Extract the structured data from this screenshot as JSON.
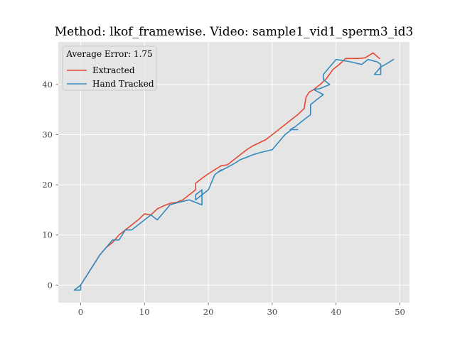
{
  "chart_data": {
    "type": "line",
    "title": "Method: lkof_framewise. Video: sample1_vid1_sperm3_id3",
    "xlabel": "",
    "ylabel": "",
    "xlim": [
      -3.5,
      51.5
    ],
    "ylim": [
      -3.5,
      48.5
    ],
    "x_ticks": [
      0,
      10,
      20,
      30,
      40,
      50
    ],
    "y_ticks": [
      0,
      10,
      20,
      30,
      40
    ],
    "grid": true,
    "legend_placement": "top-left",
    "legend_title": "Average Error: 1.75",
    "series": [
      {
        "name": "Extracted",
        "color": "#E24A33",
        "points": [
          [
            0,
            0
          ],
          [
            1,
            2
          ],
          [
            2,
            4
          ],
          [
            3,
            6
          ],
          [
            4,
            7.5
          ],
          [
            5,
            8.5
          ],
          [
            6,
            10
          ],
          [
            7,
            11
          ],
          [
            8,
            12
          ],
          [
            9,
            13
          ],
          [
            10,
            14.2
          ],
          [
            11,
            14
          ],
          [
            12,
            15.2
          ],
          [
            13,
            15.8
          ],
          [
            14,
            16.3
          ],
          [
            15,
            16.5
          ],
          [
            16,
            17
          ],
          [
            17,
            18
          ],
          [
            18,
            19
          ],
          [
            18,
            20.3
          ],
          [
            19,
            21.3
          ],
          [
            20,
            22.2
          ],
          [
            21,
            23
          ],
          [
            22,
            23.8
          ],
          [
            23,
            24
          ],
          [
            24,
            25
          ],
          [
            25,
            26
          ],
          [
            26,
            27
          ],
          [
            27,
            27.8
          ],
          [
            28,
            28.4
          ],
          [
            29,
            29
          ],
          [
            30,
            30
          ],
          [
            31,
            31
          ],
          [
            32,
            32
          ],
          [
            33,
            33
          ],
          [
            34,
            34
          ],
          [
            35,
            35.2
          ],
          [
            35.3,
            37.5
          ],
          [
            35.8,
            38.5
          ],
          [
            36.5,
            39
          ],
          [
            37.5,
            40
          ],
          [
            38.5,
            41.2
          ],
          [
            39.5,
            43
          ],
          [
            40.5,
            44
          ],
          [
            41.5,
            45.2
          ],
          [
            42.5,
            45.2
          ],
          [
            43.5,
            45.2
          ],
          [
            44.5,
            45.3
          ],
          [
            45.8,
            46.3
          ],
          [
            46.8,
            45.2
          ]
        ]
      },
      {
        "name": "Hand Tracked",
        "color": "#348ABD",
        "points": [
          [
            0,
            0
          ],
          [
            0,
            -1
          ],
          [
            -1,
            -1
          ],
          [
            0,
            0
          ],
          [
            1,
            2
          ],
          [
            2,
            4
          ],
          [
            3,
            6
          ],
          [
            4,
            7.5
          ],
          [
            5,
            9
          ],
          [
            6,
            9
          ],
          [
            7,
            11
          ],
          [
            8,
            11
          ],
          [
            9,
            12
          ],
          [
            10,
            13
          ],
          [
            11,
            14
          ],
          [
            12,
            13
          ],
          [
            13,
            14.5
          ],
          [
            14,
            16
          ],
          [
            15,
            16.4
          ],
          [
            16,
            16.7
          ],
          [
            17,
            17
          ],
          [
            18,
            16.5
          ],
          [
            19,
            16
          ],
          [
            19,
            19
          ],
          [
            18,
            18
          ],
          [
            18,
            17
          ],
          [
            19,
            18
          ],
          [
            20,
            19
          ],
          [
            21,
            22
          ],
          [
            22,
            23
          ],
          [
            21.5,
            22.5
          ],
          [
            23,
            23.5
          ],
          [
            24,
            24.2
          ],
          [
            25,
            25
          ],
          [
            26,
            25.5
          ],
          [
            27,
            26
          ],
          [
            28,
            26.4
          ],
          [
            29,
            26.7
          ],
          [
            30,
            27
          ],
          [
            31,
            28.5
          ],
          [
            32,
            30
          ],
          [
            33,
            31
          ],
          [
            34,
            31
          ],
          [
            32.8,
            31
          ],
          [
            33.5,
            31.5
          ],
          [
            34.5,
            32.5
          ],
          [
            35.5,
            33.5
          ],
          [
            36,
            34
          ],
          [
            36,
            36
          ],
          [
            37,
            37
          ],
          [
            38,
            38
          ],
          [
            36.5,
            39
          ],
          [
            37.5,
            39.2
          ],
          [
            39,
            40
          ],
          [
            38,
            41
          ],
          [
            38,
            42
          ],
          [
            39,
            43.5
          ],
          [
            40,
            45
          ],
          [
            41,
            44.8
          ],
          [
            42,
            44.6
          ],
          [
            43,
            44.3
          ],
          [
            44,
            44
          ],
          [
            45,
            45
          ],
          [
            46.5,
            44.5
          ],
          [
            47,
            44
          ],
          [
            47,
            42
          ],
          [
            46,
            42
          ],
          [
            47,
            43.5
          ],
          [
            48,
            44.2
          ],
          [
            49,
            45
          ]
        ]
      }
    ]
  }
}
